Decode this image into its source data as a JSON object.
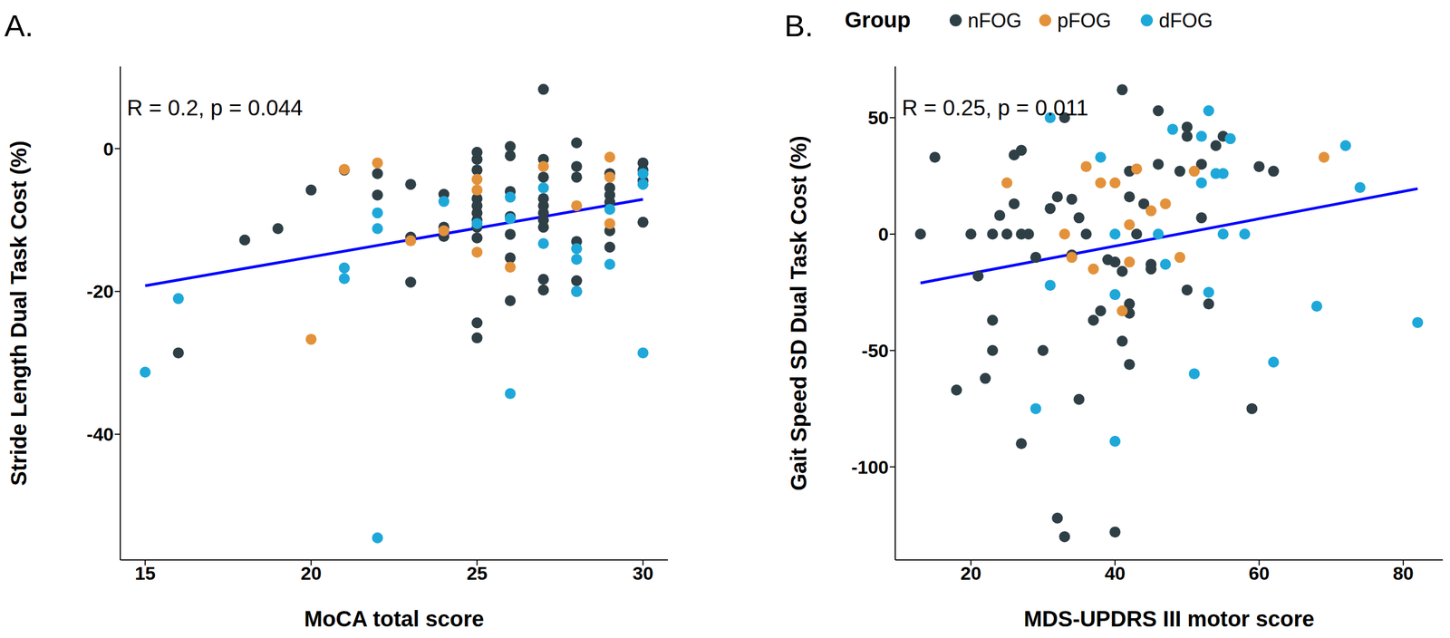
{
  "chart_data": [
    {
      "type": "scatter",
      "title": "A.",
      "annotation": "R = 0.2, p = 0.044",
      "x_label": "MoCA total score",
      "y_label": "Stride Length Dual Task Cost (%)",
      "xlim": [
        14.25,
        30.75
      ],
      "ylim": [
        -57.6,
        11.5
      ],
      "xticks": [
        15,
        20,
        25,
        30
      ],
      "yticks": [
        -40,
        -20,
        0
      ],
      "grid": false,
      "fit": {
        "color": "#0000ff",
        "x": [
          15,
          30
        ],
        "values": [
          -19.2,
          -7.1
        ]
      },
      "series": [
        {
          "name": "nFOG",
          "color": "#2f3f46",
          "x": [
            16,
            18,
            19,
            20,
            21,
            22,
            22,
            23,
            23,
            23,
            24,
            24,
            24,
            25,
            25,
            25,
            25,
            25,
            25,
            25,
            25,
            25,
            25,
            25,
            26,
            26,
            26,
            26,
            26,
            26,
            26,
            27,
            27,
            27,
            27,
            27,
            27,
            27,
            27,
            27,
            27,
            28,
            28,
            28,
            28,
            28,
            28,
            29,
            29,
            29,
            29,
            29,
            29,
            30,
            30,
            30,
            30
          ],
          "values": [
            -28.6,
            -12.8,
            -11.2,
            -5.8,
            -3,
            -3.5,
            -6.5,
            -5,
            -12.4,
            -18.7,
            -6.4,
            -12.3,
            -11,
            -0.5,
            -1.5,
            -3,
            -7,
            -8,
            -9,
            -10,
            -11,
            -12.5,
            -24.4,
            -26.5,
            0.3,
            -1,
            -6,
            -9.5,
            -12,
            -15.3,
            -21.3,
            8.3,
            -1.5,
            -4,
            -7,
            -8,
            -9,
            -10,
            -11,
            -18.3,
            -19.8,
            0.8,
            -2.5,
            -4,
            -13,
            -18.5,
            -20,
            -3.5,
            -5.5,
            -6.5,
            -7.5,
            -11.5,
            -13.8,
            -2,
            -3,
            -4.5,
            -10.3
          ]
        },
        {
          "name": "pFOG",
          "color": "#e3923b",
          "x": [
            20,
            21,
            22,
            23,
            24,
            25,
            25,
            25,
            26,
            27,
            28,
            29,
            29,
            29
          ],
          "values": [
            -26.7,
            -2.9,
            -2,
            -12.9,
            -11.5,
            -4.3,
            -5.8,
            -14.5,
            -16.6,
            -2.5,
            -8,
            -1.2,
            -4,
            -10.5
          ]
        },
        {
          "name": "dFOG",
          "color": "#1ea8d9",
          "x": [
            15,
            16,
            21,
            21,
            22,
            22,
            22,
            24,
            25,
            26,
            26,
            26,
            27,
            27,
            28,
            28,
            28,
            29,
            29,
            30,
            30,
            30
          ],
          "values": [
            -31.3,
            -21,
            -16.7,
            -18.2,
            -9,
            -11.2,
            -54.5,
            -7.4,
            -10.5,
            -6.8,
            -9.8,
            -34.3,
            -5.5,
            -13.3,
            -14,
            -15.5,
            -20,
            -8.5,
            -16.2,
            -3.5,
            -5,
            -28.6
          ]
        }
      ]
    },
    {
      "type": "scatter",
      "title": "B.",
      "annotation": "R = 0.25, p = 0.011",
      "x_label": "MDS-UPDRS III motor score",
      "y_label": "Gait Speed SD Dual Task Cost (%)",
      "xlim": [
        9.5,
        85.5
      ],
      "ylim": [
        -140,
        72
      ],
      "xticks": [
        20,
        40,
        60,
        80
      ],
      "yticks": [
        -100,
        -50,
        0,
        50
      ],
      "grid": false,
      "legend": "top",
      "legend_title": "Group",
      "fit": {
        "color": "#0000ff",
        "x": [
          13,
          82
        ],
        "values": [
          -21,
          19.5
        ]
      },
      "series": [
        {
          "name": "nFOG",
          "color": "#2f3f46",
          "x": [
            13,
            15,
            20,
            21,
            22,
            18,
            23,
            23,
            23,
            24,
            25,
            26,
            26,
            27,
            27,
            27,
            28,
            29,
            30,
            31,
            32,
            32,
            33,
            33,
            34,
            34,
            35,
            35,
            36,
            37,
            38,
            39,
            40,
            40,
            41,
            41,
            41,
            42,
            42,
            42,
            42,
            42,
            43,
            44,
            45,
            45,
            46,
            46,
            49,
            50,
            50,
            50,
            52,
            52,
            53,
            54,
            55,
            59,
            60,
            62
          ],
          "values": [
            0,
            33,
            0,
            -18,
            -62,
            -67,
            0,
            -37,
            -50,
            8,
            0,
            34,
            13,
            0,
            36,
            -90,
            0,
            -10,
            -50,
            11,
            16,
            -122,
            50,
            -130,
            15,
            -9,
            -71,
            7,
            0,
            -37,
            -33,
            -11,
            -12,
            -128,
            -16,
            62,
            -46,
            -30,
            -34,
            -56,
            16,
            27,
            0,
            13,
            -13,
            -15,
            30,
            53,
            27,
            42,
            46,
            -24,
            7,
            30,
            -30,
            38,
            42,
            -75,
            29,
            27
          ]
        },
        {
          "name": "pFOG",
          "color": "#e3923b",
          "x": [
            25,
            33,
            34,
            36,
            37,
            38,
            40,
            41,
            42,
            42,
            43,
            45,
            47,
            49,
            51,
            69
          ],
          "values": [
            22,
            0,
            -10,
            29,
            -15,
            22,
            22,
            -33,
            4,
            -12,
            28,
            10,
            13,
            -10,
            27,
            33
          ]
        },
        {
          "name": "dFOG",
          "color": "#1ea8d9",
          "x": [
            29,
            31,
            31,
            38,
            40,
            40,
            40,
            46,
            47,
            48,
            51,
            52,
            52,
            53,
            53,
            54,
            55,
            55,
            56,
            58,
            62,
            68,
            72,
            74,
            82
          ],
          "values": [
            -75,
            50,
            -22,
            33,
            -26,
            -89,
            0,
            0,
            -13,
            45,
            -60,
            22,
            42,
            53,
            -25,
            26,
            26,
            0,
            41,
            0,
            -55,
            -31,
            38,
            20,
            -38
          ]
        }
      ]
    }
  ]
}
